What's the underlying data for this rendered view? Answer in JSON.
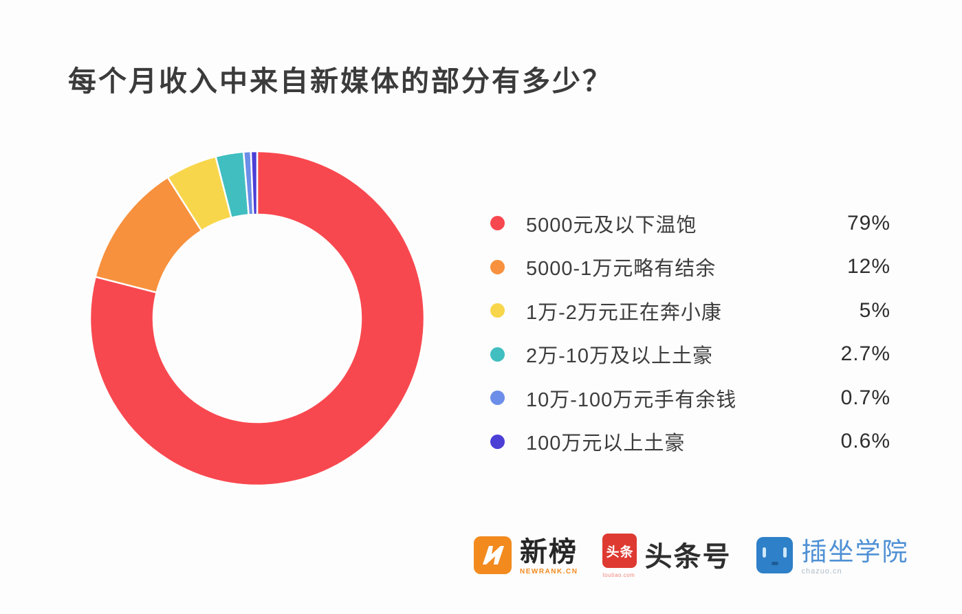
{
  "chart_data": {
    "type": "pie",
    "donut": true,
    "title": "每个月收入中来自新媒体的部分有多少？",
    "direction": "clockwise",
    "start_angle": "top",
    "inner_radius_ratio": 0.62,
    "legend_position": "right",
    "slice_separator_color": "#ffffff",
    "series": [
      {
        "label": "5000元及以下温饱",
        "value": 79,
        "display": "79%",
        "color": "#F8484F"
      },
      {
        "label": "5000-1万元略有结余",
        "value": 12,
        "display": "12%",
        "color": "#F7913D"
      },
      {
        "label": "1万-2万元正在奔小康",
        "value": 5,
        "display": "5%",
        "color": "#F8D64B"
      },
      {
        "label": "2万-10万及以上土豪",
        "value": 2.7,
        "display": "2.7%",
        "color": "#41BEC0"
      },
      {
        "label": "10万-100万元手有余钱",
        "value": 0.7,
        "display": "0.7%",
        "color": "#6C8EE8"
      },
      {
        "label": "100万元以上土豪",
        "value": 0.6,
        "display": "0.6%",
        "color": "#4B3FD6"
      }
    ]
  },
  "footer": {
    "brands": [
      {
        "name": "新榜",
        "sub": "NEWRANK.CN"
      },
      {
        "name": "头条号",
        "badge": "头条",
        "sub": "toutiao.com"
      },
      {
        "name": "插坐学院",
        "sub": "chazuo.cn"
      }
    ]
  },
  "colors": {
    "background": "#fdfdfd",
    "title_text": "#3b3b3b",
    "legend_text": "#3c3c3c",
    "value_text": "#2e2e2e",
    "newrank_orange": "#f28a1e",
    "toutiao_red": "#de3a31",
    "chazuo_blue": "#2e80c8"
  }
}
